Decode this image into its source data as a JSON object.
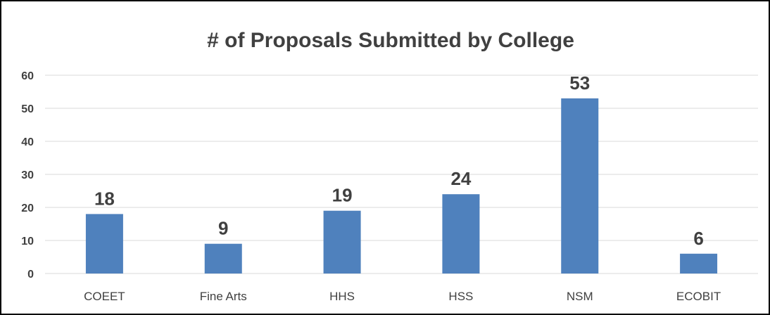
{
  "chart_data": {
    "type": "bar",
    "title": "# of Proposals Submitted by College",
    "xlabel": "",
    "ylabel": "",
    "categories": [
      "COEET",
      "Fine Arts",
      "HHS",
      "HSS",
      "NSM",
      "ECOBIT"
    ],
    "values": [
      18,
      9,
      19,
      24,
      53,
      6
    ],
    "data_labels": [
      "18",
      "9",
      "19",
      "24",
      "53",
      "6"
    ],
    "yticks": [
      0,
      10,
      20,
      30,
      40,
      50,
      60
    ],
    "ytick_labels": [
      "0",
      "10",
      "20",
      "30",
      "40",
      "50",
      "60"
    ],
    "ylim": [
      0,
      60
    ],
    "grid": true,
    "legend": "none",
    "colors": {
      "bar": "#4F81BD",
      "grid": "#D9D9D9",
      "text": "#404040",
      "border": "#000000"
    }
  }
}
